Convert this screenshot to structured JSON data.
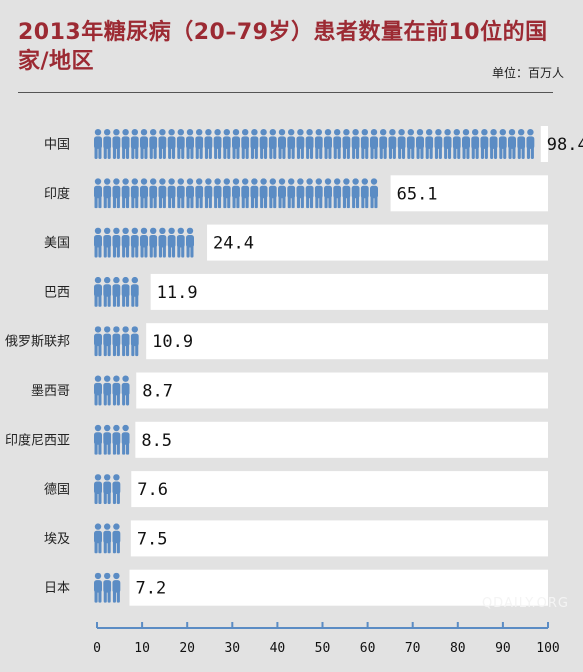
{
  "title": "2013年糖尿病（20–79岁）患者数量在前10位的国家/地区",
  "unit_label": "单位：百万人",
  "watermark": "QDAILY.ORG",
  "colors": {
    "title": "#9c2a33",
    "bar": "#5b8cc4",
    "axis": "#5b8cc4",
    "label_box": "#ffffff"
  },
  "chart_data": {
    "type": "bar",
    "orientation": "horizontal",
    "categories": [
      "中国",
      "印度",
      "美国",
      "巴西",
      "俄罗斯联邦",
      "墨西哥",
      "印度尼西亚",
      "德国",
      "埃及",
      "日本"
    ],
    "values": [
      98.4,
      65.1,
      24.4,
      11.9,
      10.9,
      8.7,
      8.5,
      7.6,
      7.5,
      7.2
    ],
    "value_labels": [
      "98.4",
      "65.1",
      "24.4",
      "11.9",
      "10.9",
      "8.7",
      "8.5",
      "7.6",
      "7.5",
      "7.2"
    ],
    "xlim": [
      0,
      100
    ],
    "xticks": [
      0,
      10,
      20,
      30,
      40,
      50,
      60,
      70,
      80,
      90,
      100
    ],
    "mark_icon": "person-icon",
    "grid": false
  }
}
